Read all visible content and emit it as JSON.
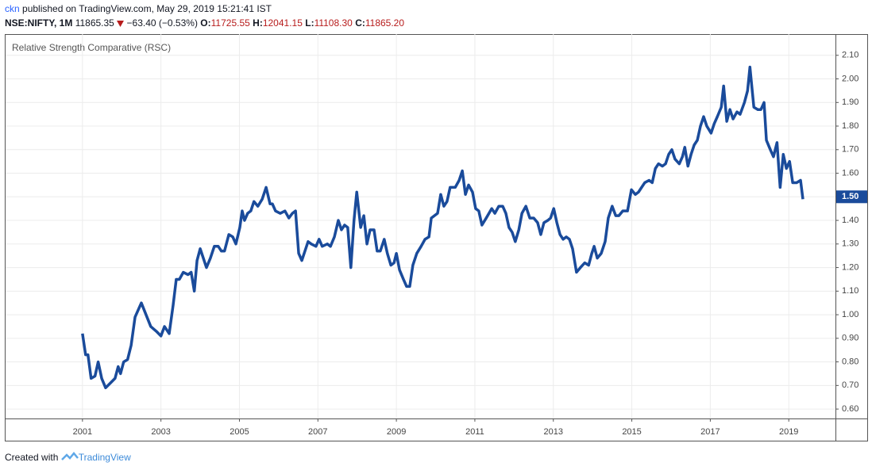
{
  "header": {
    "author": "ckn",
    "published": "published on TradingView.com, May 29, 2019 15:21:41 IST",
    "symbol": "NSE:NIFTY, 1M",
    "price": "11865.35",
    "change": "−63.40 (−0.53%)",
    "open_label": "O:",
    "open": "11725.55",
    "high_label": "H:",
    "high": "12041.15",
    "low_label": "L:",
    "low": "11108.30",
    "close_label": "C:",
    "close": "11865.20"
  },
  "footer": {
    "created": "Created with",
    "brand": "TradingView"
  },
  "chart_data": {
    "type": "line",
    "x": [
      2001.0,
      2001.08,
      2001.14,
      2001.22,
      2001.32,
      2001.4,
      2001.49,
      2001.59,
      2001.71,
      2001.83,
      2001.91,
      2001.97,
      2002.05,
      2002.15,
      2002.24,
      2002.34,
      2002.5,
      2002.62,
      2002.74,
      2002.88,
      2003.0,
      2003.09,
      2003.21,
      2003.31,
      2003.39,
      2003.47,
      2003.57,
      2003.69,
      2003.77,
      2003.85,
      2003.92,
      2004.0,
      2004.08,
      2004.16,
      2004.26,
      2004.36,
      2004.46,
      2004.54,
      2004.62,
      2004.73,
      2004.83,
      2004.91,
      2005.01,
      2005.07,
      2005.13,
      2005.21,
      2005.29,
      2005.37,
      2005.47,
      2005.58,
      2005.68,
      2005.78,
      2005.84,
      2005.92,
      2006.04,
      2006.16,
      2006.26,
      2006.35,
      2006.43,
      2006.51,
      2006.59,
      2006.67,
      2006.75,
      2006.83,
      2006.95,
      2007.03,
      2007.11,
      2007.24,
      2007.32,
      2007.42,
      2007.52,
      2007.6,
      2007.68,
      2007.76,
      2007.84,
      2007.92,
      2007.99,
      2008.09,
      2008.17,
      2008.25,
      2008.33,
      2008.43,
      2008.51,
      2008.59,
      2008.69,
      2008.77,
      2008.86,
      2008.94,
      2009.0,
      2009.08,
      2009.18,
      2009.26,
      2009.34,
      2009.42,
      2009.52,
      2009.63,
      2009.73,
      2009.83,
      2009.89,
      2009.97,
      2010.05,
      2010.13,
      2010.21,
      2010.29,
      2010.37,
      2010.5,
      2010.6,
      2010.68,
      2010.76,
      2010.84,
      2010.94,
      2011.02,
      2011.1,
      2011.18,
      2011.29,
      2011.43,
      2011.51,
      2011.61,
      2011.71,
      2011.79,
      2011.87,
      2011.95,
      2012.03,
      2012.12,
      2012.2,
      2012.3,
      2012.4,
      2012.5,
      2012.6,
      2012.68,
      2012.76,
      2012.86,
      2012.93,
      2013.01,
      2013.09,
      2013.17,
      2013.25,
      2013.33,
      2013.41,
      2013.49,
      2013.59,
      2013.69,
      2013.8,
      2013.9,
      2013.98,
      2014.04,
      2014.12,
      2014.22,
      2014.32,
      2014.4,
      2014.5,
      2014.59,
      2014.67,
      2014.77,
      2014.89,
      2014.99,
      2015.09,
      2015.17,
      2015.25,
      2015.33,
      2015.44,
      2015.52,
      2015.6,
      2015.68,
      2015.78,
      2015.86,
      2015.94,
      2016.02,
      2016.1,
      2016.21,
      2016.29,
      2016.35,
      2016.43,
      2016.51,
      2016.59,
      2016.67,
      2016.75,
      2016.83,
      2016.91,
      2017.02,
      2017.1,
      2017.18,
      2017.28,
      2017.34,
      2017.42,
      2017.5,
      2017.58,
      2017.68,
      2017.76,
      2017.87,
      2017.95,
      2018.01,
      2018.11,
      2018.21,
      2018.29,
      2018.37,
      2018.43,
      2018.53,
      2018.61,
      2018.7,
      2018.78,
      2018.86,
      2018.94,
      2019.02,
      2019.1,
      2019.2,
      2019.3,
      2019.36
    ],
    "series": [
      {
        "name": "Relative Strength Comparative (RSC)",
        "color": "#1a4b9b",
        "values": [
          0.92,
          0.83,
          0.83,
          0.73,
          0.74,
          0.8,
          0.73,
          0.69,
          0.71,
          0.73,
          0.78,
          0.75,
          0.8,
          0.81,
          0.87,
          0.99,
          1.05,
          1.0,
          0.95,
          0.93,
          0.91,
          0.95,
          0.92,
          1.04,
          1.15,
          1.15,
          1.18,
          1.17,
          1.18,
          1.1,
          1.23,
          1.28,
          1.24,
          1.2,
          1.24,
          1.29,
          1.29,
          1.27,
          1.27,
          1.34,
          1.33,
          1.3,
          1.37,
          1.44,
          1.4,
          1.43,
          1.44,
          1.48,
          1.46,
          1.49,
          1.54,
          1.47,
          1.47,
          1.44,
          1.43,
          1.44,
          1.41,
          1.43,
          1.44,
          1.26,
          1.23,
          1.27,
          1.31,
          1.3,
          1.29,
          1.32,
          1.29,
          1.3,
          1.29,
          1.33,
          1.4,
          1.36,
          1.38,
          1.37,
          1.2,
          1.4,
          1.52,
          1.37,
          1.42,
          1.3,
          1.36,
          1.36,
          1.27,
          1.27,
          1.32,
          1.26,
          1.21,
          1.22,
          1.26,
          1.19,
          1.15,
          1.12,
          1.12,
          1.21,
          1.26,
          1.29,
          1.32,
          1.33,
          1.41,
          1.42,
          1.43,
          1.51,
          1.46,
          1.48,
          1.54,
          1.54,
          1.57,
          1.61,
          1.51,
          1.55,
          1.52,
          1.45,
          1.44,
          1.38,
          1.41,
          1.45,
          1.43,
          1.46,
          1.46,
          1.43,
          1.37,
          1.35,
          1.31,
          1.36,
          1.43,
          1.46,
          1.41,
          1.41,
          1.39,
          1.34,
          1.39,
          1.4,
          1.41,
          1.45,
          1.39,
          1.34,
          1.32,
          1.33,
          1.32,
          1.28,
          1.18,
          1.2,
          1.22,
          1.21,
          1.26,
          1.29,
          1.24,
          1.26,
          1.31,
          1.41,
          1.46,
          1.42,
          1.42,
          1.44,
          1.44,
          1.53,
          1.51,
          1.52,
          1.54,
          1.56,
          1.57,
          1.56,
          1.62,
          1.64,
          1.63,
          1.64,
          1.68,
          1.7,
          1.66,
          1.64,
          1.67,
          1.71,
          1.63,
          1.68,
          1.72,
          1.74,
          1.8,
          1.84,
          1.8,
          1.77,
          1.81,
          1.84,
          1.88,
          1.97,
          1.82,
          1.87,
          1.83,
          1.86,
          1.85,
          1.9,
          1.95,
          2.05,
          1.88,
          1.87,
          1.87,
          1.9,
          1.74,
          1.7,
          1.67,
          1.73,
          1.54,
          1.68,
          1.62,
          1.65,
          1.56,
          1.56,
          1.57,
          1.49
        ]
      }
    ],
    "last_value": {
      "value": 1.5,
      "label": "1.50"
    },
    "xlim": [
      1999.04,
      2020.19
    ],
    "ylim": [
      0.56,
      2.19
    ],
    "xticks": [
      2001,
      2003,
      2005,
      2007,
      2009,
      2011,
      2013,
      2015,
      2017,
      2019
    ],
    "yticks": [
      {
        "value": 0.6,
        "label": "0.60"
      },
      {
        "value": 0.7,
        "label": "0.70"
      },
      {
        "value": 0.8,
        "label": "0.80"
      },
      {
        "value": 0.9,
        "label": "0.90"
      },
      {
        "value": 1.0,
        "label": "1.00"
      },
      {
        "value": 1.1,
        "label": "1.10"
      },
      {
        "value": 1.2,
        "label": "1.20"
      },
      {
        "value": 1.3,
        "label": "1.30"
      },
      {
        "value": 1.4,
        "label": "1.40"
      },
      {
        "value": 1.5,
        "label": "1.50"
      },
      {
        "value": 1.6,
        "label": "1.60"
      },
      {
        "value": 1.7,
        "label": "1.70"
      },
      {
        "value": 1.8,
        "label": "1.80"
      },
      {
        "value": 1.9,
        "label": "1.90"
      },
      {
        "value": 2.0,
        "label": "2.00"
      },
      {
        "value": 2.1,
        "label": "2.10"
      }
    ],
    "grid": true
  }
}
